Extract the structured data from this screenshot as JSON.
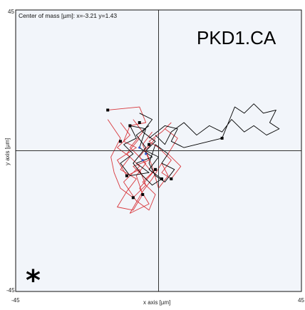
{
  "chart_data": {
    "type": "line",
    "title": "PKD1.CA",
    "center_of_mass_label": "Center of mass [µm]: x=-3.21 y=1.43",
    "center_of_mass": {
      "x": -3.21,
      "y": 1.43
    },
    "xlabel": "x axis [µm]",
    "ylabel": "y axis [µm]",
    "xlim": [
      -45,
      45
    ],
    "ylim": [
      -45,
      45
    ],
    "x_tick_labels": [
      "-45",
      "45"
    ],
    "y_tick_labels": [
      "45",
      "-45"
    ],
    "panel_marker": "*",
    "grid": false,
    "colors": {
      "background": "#f2f5fa",
      "frame": "#111111",
      "crosshair": "#333333",
      "red_series": "#d8373c",
      "black_series": "#000000",
      "blue_marker": "#3355cc"
    },
    "series": [
      {
        "color": "#d8373c",
        "points": [
          [
            -16,
            13
          ],
          [
            -6,
            14
          ],
          [
            -4,
            9
          ],
          [
            -9,
            8
          ],
          [
            -11,
            3
          ],
          [
            -7,
            1
          ],
          [
            -13,
            -3
          ],
          [
            -10,
            -8
          ],
          [
            -6,
            -6
          ],
          [
            -4,
            -11
          ],
          [
            -8,
            -15
          ],
          [
            -12,
            -12
          ],
          [
            -14,
            -7
          ],
          [
            -15,
            -2
          ],
          [
            -12,
            4
          ],
          [
            -16,
            10
          ]
        ]
      },
      {
        "color": "#d8373c",
        "points": [
          [
            -2,
            6
          ],
          [
            -5,
            2
          ],
          [
            -3,
            -3
          ],
          [
            -8,
            -5
          ],
          [
            -4,
            -9
          ],
          [
            -1,
            -6
          ],
          [
            -6,
            -12
          ],
          [
            -3,
            -17
          ],
          [
            -9,
            -20
          ],
          [
            -5,
            -13
          ],
          [
            -2,
            -9
          ],
          [
            1,
            -4
          ],
          [
            3,
            -8
          ],
          [
            0,
            -12
          ],
          [
            -2,
            -5
          ],
          [
            -4,
            0
          ],
          [
            -1,
            4
          ]
        ]
      },
      {
        "color": "#d8373c",
        "points": [
          [
            -12,
            9
          ],
          [
            -9,
            5
          ],
          [
            -13,
            1
          ],
          [
            -9,
            -2
          ],
          [
            -12,
            -6
          ],
          [
            -7,
            -9
          ],
          [
            -10,
            -13
          ],
          [
            -13,
            -18
          ],
          [
            -8,
            -19
          ],
          [
            -5,
            -14
          ],
          [
            -7,
            -8
          ],
          [
            -4,
            -4
          ],
          [
            -9,
            1
          ],
          [
            -5,
            6
          ],
          [
            -8,
            10
          ]
        ]
      },
      {
        "color": "#d8373c",
        "points": [
          [
            2,
            7
          ],
          [
            6,
            4
          ],
          [
            3,
            -1
          ],
          [
            7,
            -5
          ],
          [
            4,
            -9
          ],
          [
            1,
            -7
          ],
          [
            4,
            -3
          ],
          [
            0,
            1
          ],
          [
            -3,
            3
          ],
          [
            1,
            6
          ],
          [
            4,
            9
          ]
        ]
      },
      {
        "color": "#d8373c",
        "points": [
          [
            -6,
            4
          ],
          [
            -10,
            -1
          ],
          [
            -6,
            -5
          ],
          [
            -11,
            -10
          ],
          [
            -7,
            -16
          ],
          [
            -3,
            -19
          ],
          [
            -1,
            -14
          ],
          [
            -5,
            -10
          ],
          [
            -2,
            -7
          ],
          [
            -6,
            -2
          ],
          [
            -3,
            2
          ]
        ]
      },
      {
        "color": "#000000",
        "points": [
          [
            -6,
            12
          ],
          [
            -2,
            10
          ],
          [
            -5,
            6
          ],
          [
            -1,
            3
          ],
          [
            -4,
            0
          ],
          [
            0,
            -2
          ],
          [
            -3,
            -6
          ],
          [
            1,
            -9
          ],
          [
            -2,
            -11
          ],
          [
            -5,
            -8
          ],
          [
            -8,
            -4
          ],
          [
            -4,
            1
          ],
          [
            -7,
            5
          ],
          [
            -3,
            8
          ]
        ]
      },
      {
        "color": "#000000",
        "points": [
          [
            -11,
            2
          ],
          [
            -7,
            4
          ],
          [
            -9,
            8
          ],
          [
            -4,
            7
          ],
          [
            -6,
            1
          ],
          [
            -2,
            -2
          ],
          [
            -7,
            -4
          ],
          [
            -3,
            -7
          ],
          [
            -9,
            -8
          ],
          [
            -12,
            -4
          ],
          [
            -8,
            -1
          ],
          [
            -11,
            2
          ]
        ]
      },
      {
        "color": "#000000",
        "points": [
          [
            -3,
            4
          ],
          [
            2,
            8
          ],
          [
            6,
            7
          ],
          [
            4,
            3
          ],
          [
            8,
            1
          ],
          [
            12,
            2
          ],
          [
            16,
            3
          ],
          [
            20,
            4
          ],
          [
            22,
            9
          ],
          [
            24,
            14
          ],
          [
            27,
            12
          ],
          [
            30,
            15
          ],
          [
            33,
            12
          ],
          [
            37,
            13
          ],
          [
            35,
            9
          ],
          [
            38,
            7
          ],
          [
            34,
            5
          ],
          [
            30,
            8
          ],
          [
            27,
            6
          ],
          [
            23,
            10
          ],
          [
            20,
            6
          ],
          [
            16,
            8
          ],
          [
            12,
            5
          ],
          [
            8,
            9
          ],
          [
            4,
            6
          ],
          [
            2,
            2
          ],
          [
            -1,
            5
          ]
        ]
      },
      {
        "color": "#000000",
        "points": [
          [
            -1,
            2
          ],
          [
            3,
            -1
          ],
          [
            1,
            -4
          ],
          [
            5,
            -6
          ],
          [
            2,
            -10
          ],
          [
            -1,
            -8
          ],
          [
            -3,
            -4
          ],
          [
            -1,
            2
          ]
        ]
      }
    ],
    "endpoints": [
      [
        -16,
        13
      ],
      [
        -6,
        9
      ],
      [
        -12,
        3
      ],
      [
        -10,
        -8
      ],
      [
        -5,
        -14
      ],
      [
        -8,
        -15
      ],
      [
        -1,
        -6
      ],
      [
        4,
        -9
      ],
      [
        -3,
        2
      ],
      [
        20,
        4
      ],
      [
        -9,
        8
      ],
      [
        1,
        -9
      ]
    ],
    "blue_points": [
      [
        -6,
        1
      ],
      [
        -4,
        -1
      ],
      [
        -5,
        -3
      ]
    ]
  }
}
